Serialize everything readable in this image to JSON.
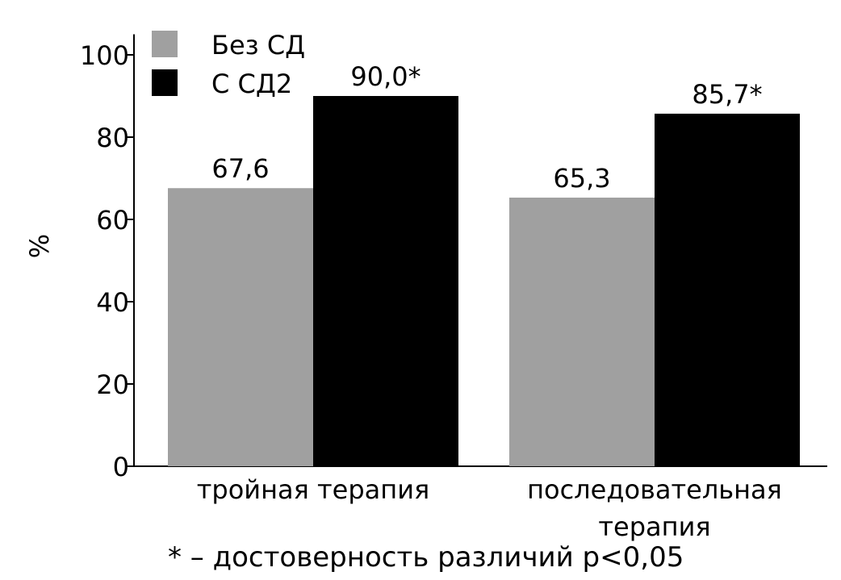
{
  "chart_data": {
    "type": "bar",
    "categories": [
      [
        "тройная терапия"
      ],
      [
        "последовательная",
        "терапия"
      ]
    ],
    "series": [
      {
        "name": "Без СД",
        "color": "#a0a0a0",
        "values": [
          67.6,
          65.3
        ],
        "value_labels": [
          "67,6",
          "65,3"
        ]
      },
      {
        "name": "С СД2",
        "color": "#000000",
        "values": [
          90.0,
          85.7
        ],
        "value_labels": [
          "90,0*",
          "85,7*"
        ]
      }
    ],
    "ylabel": "%",
    "ylim": [
      0,
      105
    ],
    "yticks": [
      0,
      20,
      40,
      60,
      80,
      100
    ],
    "grid": false,
    "legend_position": "top-left"
  },
  "footnote": "* – достоверность различий p<0,05"
}
